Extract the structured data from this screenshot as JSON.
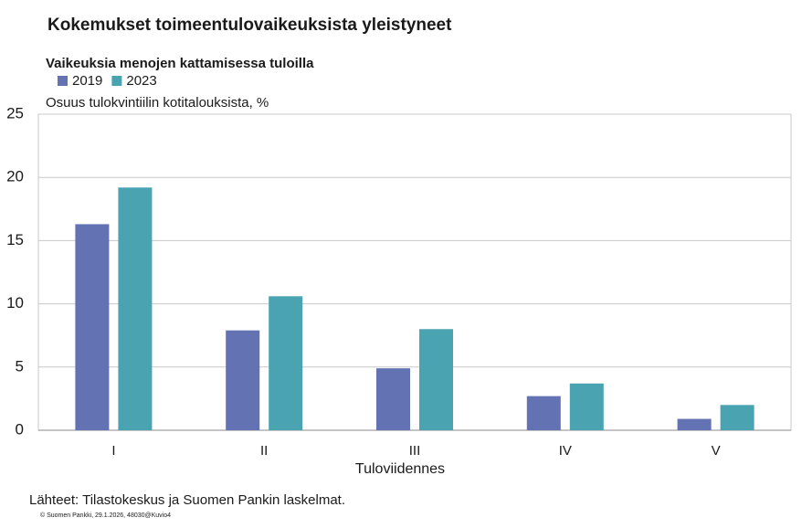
{
  "chart_data": {
    "type": "bar",
    "title": "Kokemukset toimeentulovaikeuksista yleistyneet",
    "subtitle": "Vaikeuksia menojen kattamisessa tuloilla",
    "y_label": "Osuus tulokvintiilin  kotitalouksista, %",
    "x_label": "Tuloviidennes",
    "source": "Lähteet: Tilastokeskus ja Suomen Pankin laskelmat.",
    "footer": "© Suomen Pankki, 29.1.2026, 48030@Kuvio4",
    "categories": [
      "I",
      "II",
      "III",
      "IV",
      "V"
    ],
    "series": [
      {
        "name": "2019",
        "color": "#6272b2",
        "values": [
          16.3,
          7.9,
          4.9,
          2.7,
          0.9
        ]
      },
      {
        "name": "2023",
        "color": "#4aa3b0",
        "values": [
          19.2,
          10.6,
          8.0,
          3.7,
          2.0
        ]
      }
    ],
    "ylim": [
      0,
      25
    ],
    "yticks": [
      0,
      5,
      10,
      15,
      20,
      25
    ],
    "grid": true
  }
}
